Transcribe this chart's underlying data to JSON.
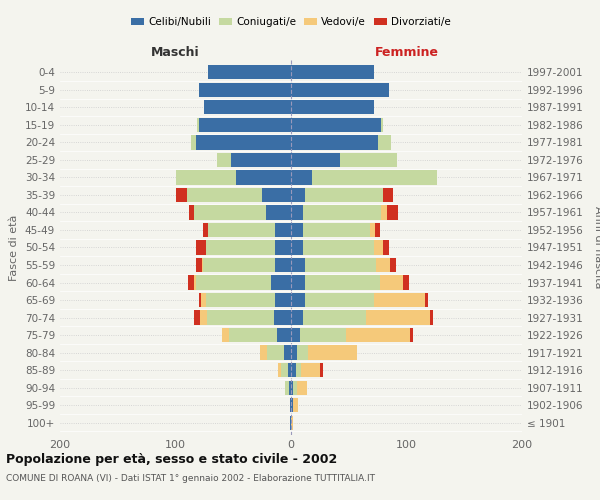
{
  "age_groups": [
    "100+",
    "95-99",
    "90-94",
    "85-89",
    "80-84",
    "75-79",
    "70-74",
    "65-69",
    "60-64",
    "55-59",
    "50-54",
    "45-49",
    "40-44",
    "35-39",
    "30-34",
    "25-29",
    "20-24",
    "15-19",
    "10-14",
    "5-9",
    "0-4"
  ],
  "birth_years": [
    "≤ 1901",
    "1902-1906",
    "1907-1911",
    "1912-1916",
    "1917-1921",
    "1922-1926",
    "1927-1931",
    "1932-1936",
    "1937-1941",
    "1942-1946",
    "1947-1951",
    "1952-1956",
    "1957-1961",
    "1962-1966",
    "1967-1971",
    "1972-1976",
    "1977-1981",
    "1982-1986",
    "1987-1991",
    "1992-1996",
    "1997-2001"
  ],
  "colors": {
    "celibi": "#3a6ea5",
    "coniugati": "#c5d9a0",
    "vedovi": "#f5c97a",
    "divorziati": "#d03020"
  },
  "males": {
    "celibi": [
      1,
      1,
      2,
      3,
      6,
      12,
      15,
      14,
      17,
      14,
      14,
      14,
      22,
      25,
      48,
      52,
      82,
      80,
      75,
      80,
      72
    ],
    "coniugati": [
      0,
      0,
      3,
      6,
      15,
      42,
      58,
      60,
      65,
      62,
      60,
      58,
      62,
      65,
      52,
      12,
      5,
      1,
      0,
      0,
      0
    ],
    "vedovi": [
      0,
      0,
      0,
      2,
      6,
      6,
      6,
      4,
      2,
      1,
      0,
      0,
      0,
      0,
      0,
      0,
      0,
      0,
      0,
      0,
      0
    ],
    "divorziati": [
      0,
      0,
      0,
      0,
      0,
      0,
      5,
      2,
      5,
      5,
      8,
      4,
      4,
      10,
      0,
      0,
      0,
      0,
      0,
      0,
      0
    ]
  },
  "females": {
    "nubili": [
      0,
      2,
      2,
      4,
      5,
      8,
      10,
      12,
      12,
      12,
      10,
      10,
      10,
      12,
      18,
      42,
      75,
      78,
      72,
      85,
      72
    ],
    "coniugate": [
      0,
      0,
      3,
      5,
      10,
      40,
      55,
      60,
      65,
      62,
      62,
      58,
      68,
      68,
      108,
      50,
      12,
      2,
      0,
      0,
      0
    ],
    "vedove": [
      2,
      4,
      9,
      16,
      42,
      55,
      55,
      44,
      20,
      12,
      8,
      5,
      5,
      0,
      0,
      0,
      0,
      0,
      0,
      0,
      0
    ],
    "divorziate": [
      0,
      0,
      0,
      3,
      0,
      3,
      3,
      3,
      5,
      5,
      5,
      4,
      10,
      8,
      0,
      0,
      0,
      0,
      0,
      0,
      0
    ]
  },
  "title": "Popolazione per età, sesso e stato civile - 2002",
  "subtitle": "COMUNE DI ROANA (VI) - Dati ISTAT 1° gennaio 2002 - Elaborazione TUTTITALIA.IT",
  "label_maschi": "Maschi",
  "label_femmine": "Femmine",
  "ylabel_left": "Fasce di età",
  "ylabel_right": "Anni di nascita",
  "xlim": 200,
  "background_color": "#f4f4ee",
  "bar_height": 0.82
}
